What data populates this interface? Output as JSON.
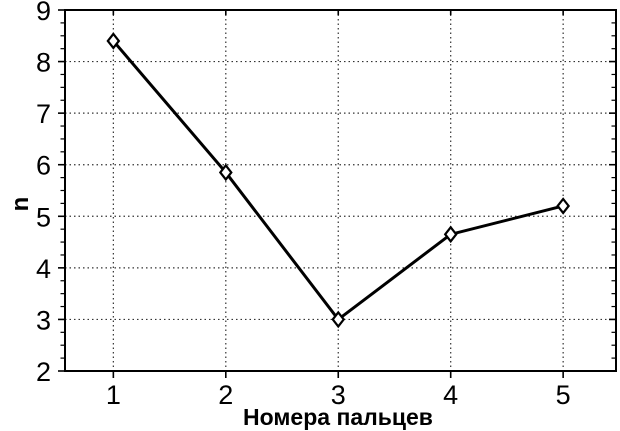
{
  "figure": {
    "background": "#ffffff"
  },
  "chart_data": {
    "type": "line",
    "title": "",
    "xlabel": "Номера пальцев",
    "ylabel": "n",
    "x": [
      1,
      2,
      3,
      4,
      5
    ],
    "series": [
      {
        "name": "n",
        "values": [
          8.4,
          5.85,
          3.0,
          4.65,
          5.2
        ]
      }
    ],
    "xlim": [
      0.57,
      5.47
    ],
    "ylim": [
      2,
      9
    ],
    "x_ticks": [
      1,
      2,
      3,
      4,
      5
    ],
    "x_tick_labels": [
      "1",
      "2",
      "3",
      "4",
      "5"
    ],
    "y_ticks": [
      2,
      3,
      4,
      5,
      6,
      7,
      8,
      9
    ],
    "y_tick_labels": [
      "2",
      "3",
      "4",
      "5",
      "6",
      "7",
      "8",
      "9"
    ],
    "y_minor_tick_step": 0.25,
    "grid": {
      "on": true,
      "style": "dotted",
      "color": "#333333",
      "x_lines": [
        1,
        2,
        3,
        4,
        5
      ],
      "y_lines": [
        3,
        4,
        5,
        6,
        7,
        8
      ]
    },
    "line": {
      "color": "#000000",
      "width": 3
    },
    "marker": {
      "shape": "diamond",
      "fill": "#ffffff",
      "stroke": "#000000",
      "stroke_width": 2.2
    },
    "axes_color": "#000000",
    "legend": "none"
  }
}
